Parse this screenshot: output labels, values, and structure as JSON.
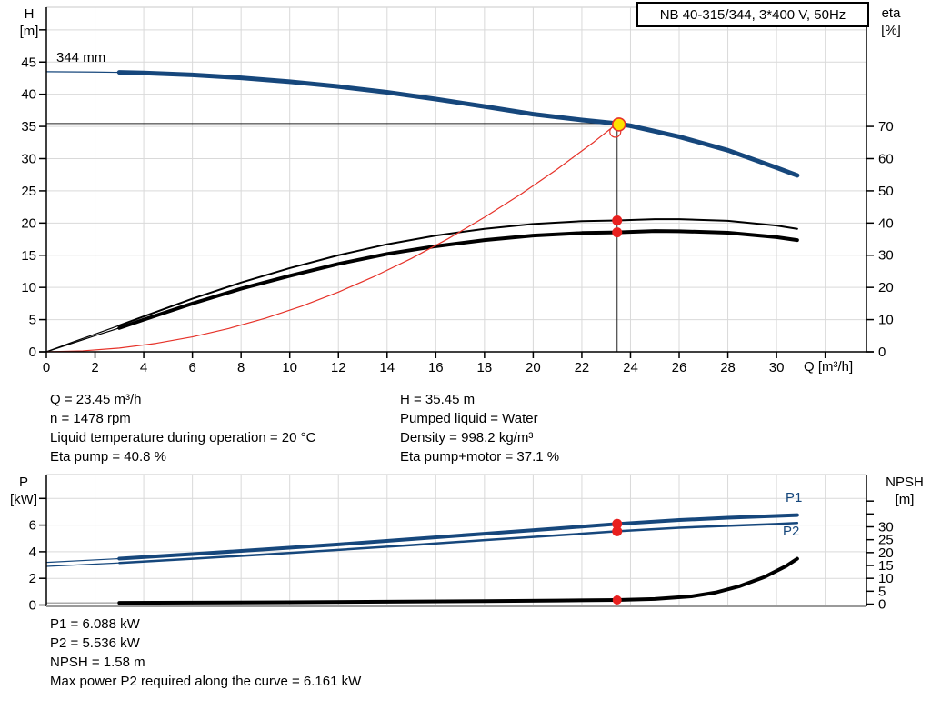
{
  "chart_title": "NB 40-315/344, 3*400 V, 50Hz",
  "annotations": {
    "operating_left": [
      "Q = 23.45 m³/h",
      "n = 1478 rpm",
      "Liquid temperature during operation = 20 °C",
      "Eta pump = 40.8 %"
    ],
    "operating_right": [
      "H = 35.45 m",
      "Pumped liquid = Water",
      "Density = 998.2 kg/m³",
      "Eta pump+motor = 37.1 %"
    ],
    "power_block": [
      "P1 = 6.088 kW",
      "P2 = 5.536 kW",
      "NPSH = 1.58 m",
      "Max power P2 required along the curve = 6.161 kW"
    ]
  },
  "colors": {
    "curve_blue": "#16477c",
    "marker_red": "#e8201f",
    "system_red": "#e63229",
    "duty_yellow": "#ffe200",
    "grid_gray": "#d9d9d9",
    "lead_gray": "#9a9a9a",
    "axis_black": "#000000"
  },
  "chart_data": [
    {
      "type": "line",
      "title": "NB 40-315/344, 3*400 V, 50Hz",
      "impeller_label": "344 mm",
      "x_axis": {
        "label": "Q [m³/h]",
        "min": 0,
        "max": 33.7,
        "tick_step": 2,
        "ticks": [
          0,
          2,
          4,
          6,
          8,
          10,
          12,
          14,
          16,
          18,
          20,
          22,
          24,
          26,
          28,
          30
        ]
      },
      "y_left": {
        "label": "H",
        "unit": "[m]",
        "min": 0,
        "max": 53.5,
        "tick_step": 5,
        "ticks": [
          0,
          5,
          10,
          15,
          20,
          25,
          30,
          35,
          40,
          45
        ]
      },
      "y_right": {
        "label": "eta",
        "unit": "[%]",
        "min": 0,
        "max": 107,
        "tick_step": 10,
        "ticks": [
          0,
          10,
          20,
          30,
          40,
          50,
          60,
          70
        ]
      },
      "grid": true,
      "legend_position": "none",
      "series": [
        {
          "name": "head-curve",
          "label": "344 mm",
          "axis": "left",
          "color": "#16477c",
          "width": 5,
          "thin_until": 3,
          "points": [
            [
              0,
              43.5
            ],
            [
              2,
              43.45
            ],
            [
              3,
              43.4
            ],
            [
              4,
              43.3
            ],
            [
              6,
              43.0
            ],
            [
              8,
              42.55
            ],
            [
              10,
              41.95
            ],
            [
              12,
              41.2
            ],
            [
              14,
              40.3
            ],
            [
              16,
              39.25
            ],
            [
              18,
              38.1
            ],
            [
              20,
              36.9
            ],
            [
              22,
              36.0
            ],
            [
              23.45,
              35.45
            ],
            [
              24,
              35.1
            ],
            [
              26,
              33.4
            ],
            [
              28,
              31.3
            ],
            [
              30,
              28.6
            ],
            [
              30.85,
              27.4
            ]
          ]
        },
        {
          "name": "eta-pump-curve",
          "label": "Eta pump",
          "axis": "right",
          "color": "#000000",
          "width": 2,
          "thin_until": 3,
          "points": [
            [
              0,
              0
            ],
            [
              1,
              2.8
            ],
            [
              2,
              5.5
            ],
            [
              3,
              8.2
            ],
            [
              4,
              11
            ],
            [
              6,
              16.5
            ],
            [
              8,
              21.5
            ],
            [
              10,
              26
            ],
            [
              12,
              30
            ],
            [
              14,
              33.4
            ],
            [
              16,
              36.1
            ],
            [
              18,
              38.2
            ],
            [
              20,
              39.7
            ],
            [
              22,
              40.6
            ],
            [
              23.45,
              40.8
            ],
            [
              25,
              41.2
            ],
            [
              26,
              41.2
            ],
            [
              28,
              40.7
            ],
            [
              30,
              39.2
            ],
            [
              30.85,
              38.2
            ]
          ]
        },
        {
          "name": "eta-pump-motor-curve",
          "label": "Eta pump+motor",
          "axis": "right",
          "color": "#000000",
          "width": 4,
          "thin_until": 3,
          "points": [
            [
              0,
              0
            ],
            [
              1,
              2.5
            ],
            [
              2,
              5.0
            ],
            [
              3,
              7.4
            ],
            [
              4,
              10
            ],
            [
              6,
              15
            ],
            [
              8,
              19.6
            ],
            [
              10,
              23.6
            ],
            [
              12,
              27.3
            ],
            [
              14,
              30.4
            ],
            [
              16,
              32.8
            ],
            [
              18,
              34.7
            ],
            [
              20,
              36.1
            ],
            [
              22,
              36.9
            ],
            [
              23.45,
              37.1
            ],
            [
              25,
              37.5
            ],
            [
              26,
              37.45
            ],
            [
              28,
              37.0
            ],
            [
              30,
              35.6
            ],
            [
              30.85,
              34.7
            ]
          ]
        },
        {
          "name": "system-curve",
          "label": "System curve",
          "axis": "left",
          "color": "#e63229",
          "width": 1.2,
          "end_marker": "open-circle",
          "points": [
            [
              0,
              0
            ],
            [
              1.5,
              0.15
            ],
            [
              3,
              0.58
            ],
            [
              4.5,
              1.31
            ],
            [
              6,
              2.32
            ],
            [
              7.5,
              3.63
            ],
            [
              9,
              5.22
            ],
            [
              10.5,
              7.11
            ],
            [
              12,
              9.28
            ],
            [
              13.5,
              11.75
            ],
            [
              15,
              14.5
            ],
            [
              16.5,
              17.55
            ],
            [
              18,
              20.89
            ],
            [
              19.5,
              24.5
            ],
            [
              21,
              28.4
            ],
            [
              22.5,
              32.6
            ],
            [
              23.45,
              35.45
            ]
          ]
        }
      ],
      "duty_point": {
        "Q": 23.45,
        "H": 35.45,
        "eta_pump": 40.8,
        "eta_pump_motor": 37.1
      }
    },
    {
      "type": "line",
      "x_axis": {
        "label": "",
        "min": 0,
        "max": 33.7,
        "tick_step": 2
      },
      "y_left": {
        "label": "P",
        "unit": "[kW]",
        "min": 0,
        "max": 9.8,
        "tick_step": 2,
        "ticks": [
          0,
          2,
          4,
          6
        ]
      },
      "y_right": {
        "label": "NPSH",
        "unit": "[m]",
        "min": 0,
        "max": 50,
        "tick_step": 5,
        "ticks": [
          0,
          5,
          10,
          15,
          20,
          25,
          30
        ]
      },
      "grid": true,
      "series": [
        {
          "name": "p1-curve",
          "label": "P1",
          "axis": "left",
          "color": "#16477c",
          "width": 4,
          "thin_until": 3,
          "points": [
            [
              0,
              3.2
            ],
            [
              3,
              3.48
            ],
            [
              6,
              3.82
            ],
            [
              9,
              4.18
            ],
            [
              12,
              4.55
            ],
            [
              15,
              4.95
            ],
            [
              18,
              5.35
            ],
            [
              21,
              5.75
            ],
            [
              23.45,
              6.088
            ],
            [
              26,
              6.38
            ],
            [
              28,
              6.55
            ],
            [
              30,
              6.69
            ],
            [
              30.85,
              6.75
            ]
          ]
        },
        {
          "name": "p2-curve",
          "label": "P2",
          "axis": "left",
          "color": "#16477c",
          "width": 2.5,
          "thin_until": 3,
          "points": [
            [
              0,
              2.9
            ],
            [
              3,
              3.16
            ],
            [
              6,
              3.47
            ],
            [
              9,
              3.8
            ],
            [
              12,
              4.14
            ],
            [
              15,
              4.5
            ],
            [
              18,
              4.87
            ],
            [
              21,
              5.23
            ],
            [
              23.45,
              5.536
            ],
            [
              26,
              5.8
            ],
            [
              28,
              5.95
            ],
            [
              30,
              6.08
            ],
            [
              30.85,
              6.16
            ]
          ]
        },
        {
          "name": "npsh-curve",
          "label": "NPSH",
          "axis": "right",
          "color": "#000000",
          "width": 4,
          "thin_until": 3,
          "points": [
            [
              0,
              0.45
            ],
            [
              3,
              0.5
            ],
            [
              6,
              0.58
            ],
            [
              10,
              0.72
            ],
            [
              14,
              0.92
            ],
            [
              18,
              1.15
            ],
            [
              21,
              1.38
            ],
            [
              23.45,
              1.58
            ],
            [
              25,
              2.0
            ],
            [
              26.5,
              3.0
            ],
            [
              27.5,
              4.5
            ],
            [
              28.5,
              7.0
            ],
            [
              29.5,
              10.5
            ],
            [
              30.4,
              14.8
            ],
            [
              30.85,
              17.6
            ]
          ]
        }
      ],
      "duty_point": {
        "Q": 23.45,
        "P1": 6.088,
        "P2": 5.536,
        "NPSH": 1.58
      }
    }
  ]
}
